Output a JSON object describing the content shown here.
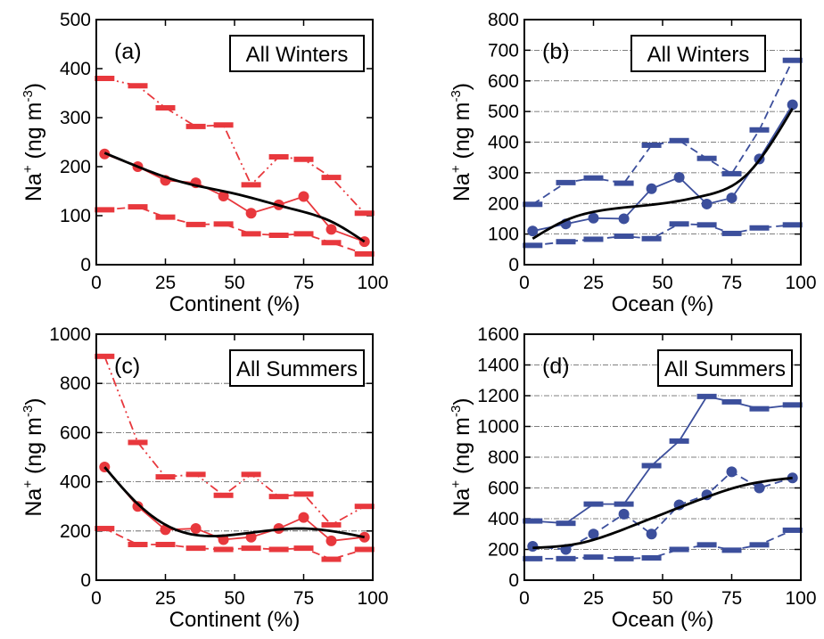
{
  "colors": {
    "red": "#e8383d",
    "blue": "#3c4f9c",
    "fit": "#000000",
    "grid": "#555555"
  },
  "chart_data": [
    {
      "id": "a",
      "type": "line",
      "panel_label": "(a)",
      "box_label": "All Winters",
      "xlabel": "Continent (%)",
      "ylabel_base": "Na",
      "ylabel_sup": "+",
      "ylabel_rest": " (ng m",
      "ylabel_exp": "-3",
      "ylabel_close": ")",
      "xlim": [
        0,
        100
      ],
      "ylim": [
        0,
        500
      ],
      "xticks": [
        0,
        25,
        50,
        75,
        100
      ],
      "yticks": [
        0,
        100,
        200,
        300,
        400,
        500
      ],
      "grid": false,
      "color": "red",
      "x": [
        3,
        15,
        25,
        36,
        46,
        56,
        66,
        75,
        85,
        97
      ],
      "series": [
        {
          "role": "upper",
          "style": "dash-dot-dot",
          "markers": "bar",
          "values": [
            380,
            365,
            320,
            282,
            285,
            163,
            220,
            215,
            178,
            105
          ]
        },
        {
          "role": "mean",
          "style": "solid",
          "markers": "circle",
          "values": [
            226,
            200,
            172,
            167,
            140,
            105,
            122,
            139,
            72,
            47
          ]
        },
        {
          "role": "lower",
          "style": "dashed",
          "markers": "bar",
          "values": [
            112,
            118,
            97,
            82,
            83,
            63,
            60,
            63,
            45,
            22
          ]
        }
      ],
      "fit": [
        [
          3,
          228
        ],
        [
          15,
          200
        ],
        [
          30,
          170
        ],
        [
          50,
          145
        ],
        [
          70,
          115
        ],
        [
          85,
          88
        ],
        [
          97,
          47
        ]
      ]
    },
    {
      "id": "b",
      "type": "line",
      "panel_label": "(b)",
      "box_label": "All Winters",
      "xlabel": "Ocean (%)",
      "ylabel_base": "Na",
      "ylabel_sup": "+",
      "ylabel_rest": " (ng m",
      "ylabel_exp": "-3",
      "ylabel_close": ")",
      "xlim": [
        0,
        100
      ],
      "ylim": [
        0,
        800
      ],
      "xticks": [
        0,
        25,
        50,
        75,
        100
      ],
      "yticks": [
        0,
        100,
        200,
        300,
        400,
        500,
        600,
        700,
        800
      ],
      "grid": true,
      "color": "blue",
      "x": [
        3,
        15,
        25,
        36,
        46,
        56,
        66,
        75,
        85,
        97
      ],
      "series": [
        {
          "role": "upper",
          "style": "dashed",
          "markers": "bar",
          "values": [
            197,
            268,
            283,
            266,
            390,
            405,
            347,
            297,
            440,
            667
          ]
        },
        {
          "role": "mean",
          "style": "solid",
          "markers": "circle",
          "values": [
            110,
            133,
            152,
            150,
            248,
            285,
            198,
            218,
            345,
            522
          ]
        },
        {
          "role": "lower",
          "style": "dashed",
          "markers": "bar",
          "values": [
            63,
            75,
            83,
            93,
            85,
            133,
            130,
            102,
            120,
            130
          ]
        }
      ],
      "fit": [
        [
          3,
          85
        ],
        [
          15,
          145
        ],
        [
          30,
          180
        ],
        [
          50,
          200
        ],
        [
          65,
          225
        ],
        [
          80,
          290
        ],
        [
          97,
          510
        ]
      ]
    },
    {
      "id": "c",
      "type": "line",
      "panel_label": "(c)",
      "box_label": "All Summers",
      "xlabel": "Continent (%)",
      "ylabel_base": "Na",
      "ylabel_sup": "+",
      "ylabel_rest": " (ng m",
      "ylabel_exp": "-3",
      "ylabel_close": ")",
      "xlim": [
        0,
        100
      ],
      "ylim": [
        0,
        1000
      ],
      "xticks": [
        0,
        25,
        50,
        75,
        100
      ],
      "yticks": [
        0,
        200,
        400,
        600,
        800,
        1000
      ],
      "grid": true,
      "color": "red",
      "x": [
        3,
        15,
        25,
        36,
        46,
        56,
        66,
        75,
        85,
        97
      ],
      "series": [
        {
          "role": "upper",
          "style": "dash-dot-dot",
          "markers": "bar",
          "values": [
            910,
            560,
            420,
            430,
            345,
            430,
            340,
            350,
            225,
            300
          ]
        },
        {
          "role": "mean",
          "style": "solid",
          "markers": "circle",
          "values": [
            460,
            300,
            205,
            210,
            165,
            175,
            210,
            255,
            160,
            175
          ]
        },
        {
          "role": "lower",
          "style": "dashed",
          "markers": "bar",
          "values": [
            210,
            145,
            145,
            130,
            125,
            130,
            125,
            130,
            85,
            125
          ]
        }
      ],
      "fit": [
        [
          3,
          460
        ],
        [
          15,
          310
        ],
        [
          30,
          200
        ],
        [
          50,
          185
        ],
        [
          75,
          210
        ],
        [
          97,
          175
        ]
      ]
    },
    {
      "id": "d",
      "type": "line",
      "panel_label": "(d)",
      "box_label": "All Summers",
      "xlabel": "Ocean (%)",
      "ylabel_base": "Na",
      "ylabel_sup": "+",
      "ylabel_rest": " (ng m",
      "ylabel_exp": "-3",
      "ylabel_close": ")",
      "xlim": [
        0,
        100
      ],
      "ylim": [
        0,
        1600
      ],
      "xticks": [
        0,
        25,
        50,
        75,
        100
      ],
      "yticks": [
        0,
        200,
        400,
        600,
        800,
        1000,
        1200,
        1400,
        1600
      ],
      "grid": true,
      "color": "blue",
      "x": [
        3,
        15,
        25,
        36,
        46,
        56,
        66,
        75,
        85,
        97
      ],
      "series": [
        {
          "role": "upper",
          "style": "solid",
          "markers": "bar",
          "values": [
            385,
            370,
            495,
            495,
            745,
            905,
            1195,
            1160,
            1115,
            1140
          ]
        },
        {
          "role": "mean",
          "style": "dashed",
          "markers": "circle",
          "values": [
            220,
            200,
            300,
            430,
            300,
            490,
            555,
            705,
            600,
            665
          ]
        },
        {
          "role": "lower",
          "style": "dashed",
          "markers": "bar",
          "values": [
            140,
            140,
            150,
            140,
            145,
            200,
            230,
            195,
            230,
            325
          ]
        }
      ],
      "fit": [
        [
          3,
          210
        ],
        [
          20,
          240
        ],
        [
          40,
          360
        ],
        [
          60,
          500
        ],
        [
          80,
          620
        ],
        [
          97,
          665
        ]
      ]
    }
  ]
}
